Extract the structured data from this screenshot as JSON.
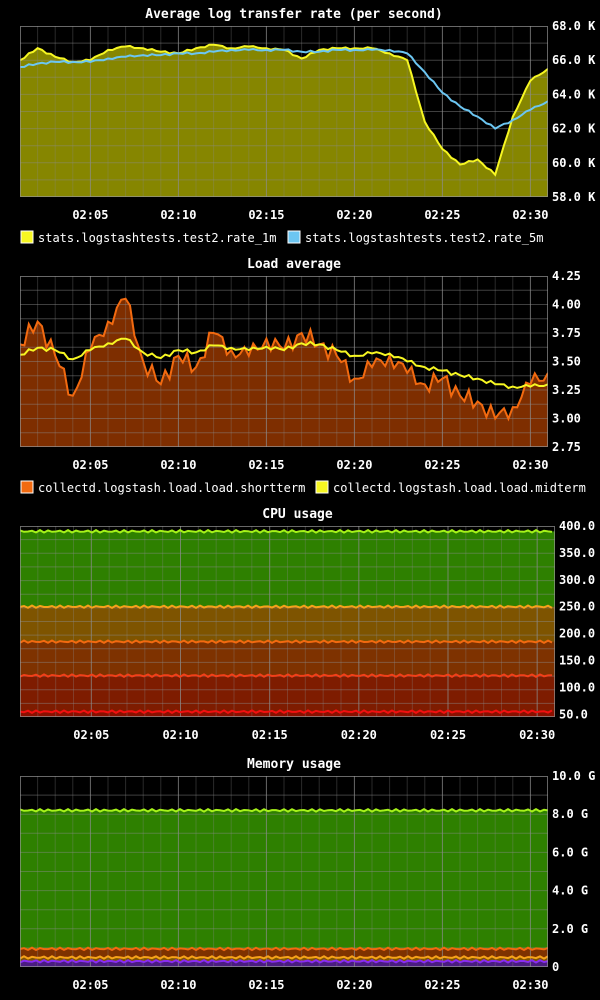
{
  "chart_data": [
    {
      "type": "area",
      "title": "Average log transfer rate (per second)",
      "x_ticks": [
        "02:05",
        "02:10",
        "02:15",
        "02:20",
        "02:25",
        "02:30"
      ],
      "x_range": [
        "02:01",
        "02:31"
      ],
      "ylim": [
        58000,
        68000
      ],
      "y_ticks": [
        58000,
        60000,
        62000,
        64000,
        66000,
        68000
      ],
      "y_tick_labels": [
        "58.0 K",
        "60.0 K",
        "62.0 K",
        "64.0 K",
        "66.0 K",
        "68.0 K"
      ],
      "grid": true,
      "legend_position": "bottom-left",
      "series": [
        {
          "name": "stats.logstashtests.test2.rate_1m",
          "color": "#f7f722",
          "fill": "#868600",
          "x": [
            "02:01",
            "02:02",
            "02:03",
            "02:04",
            "02:05",
            "02:06",
            "02:07",
            "02:08",
            "02:09",
            "02:10",
            "02:11",
            "02:12",
            "02:13",
            "02:14",
            "02:15",
            "02:16",
            "02:17",
            "02:18",
            "02:19",
            "02:20",
            "02:21",
            "02:22",
            "02:23",
            "02:24",
            "02:25",
            "02:26",
            "02:27",
            "02:28",
            "02:29",
            "02:30",
            "02:31"
          ],
          "values": [
            66000,
            66700,
            66200,
            65900,
            66000,
            66600,
            66800,
            66700,
            66500,
            66400,
            66700,
            66900,
            66700,
            66800,
            66700,
            66600,
            66100,
            66600,
            66700,
            66700,
            66700,
            66400,
            66000,
            62400,
            60800,
            59900,
            60200,
            59300,
            62700,
            64800,
            65500
          ]
        },
        {
          "name": "stats.logstashtests.test2.rate_5m",
          "color": "#6cc6f2",
          "x": [
            "02:01",
            "02:02",
            "02:03",
            "02:04",
            "02:05",
            "02:06",
            "02:07",
            "02:08",
            "02:09",
            "02:10",
            "02:11",
            "02:12",
            "02:13",
            "02:14",
            "02:15",
            "02:16",
            "02:17",
            "02:18",
            "02:19",
            "02:20",
            "02:21",
            "02:22",
            "02:23",
            "02:24",
            "02:25",
            "02:26",
            "02:27",
            "02:28",
            "02:29",
            "02:30",
            "02:31"
          ],
          "values": [
            65600,
            65800,
            65900,
            65900,
            65900,
            66100,
            66200,
            66300,
            66300,
            66400,
            66400,
            66500,
            66600,
            66600,
            66600,
            66600,
            66500,
            66500,
            66600,
            66600,
            66600,
            66600,
            66400,
            65300,
            64100,
            63300,
            62700,
            62000,
            62500,
            63100,
            63600
          ]
        }
      ]
    },
    {
      "type": "area",
      "title": "Load average",
      "x_ticks": [
        "02:05",
        "02:10",
        "02:15",
        "02:20",
        "02:25",
        "02:30"
      ],
      "x_range": [
        "02:01",
        "02:31"
      ],
      "ylim": [
        2.75,
        4.25
      ],
      "y_ticks": [
        2.75,
        3.0,
        3.25,
        3.5,
        3.75,
        4.0,
        4.25
      ],
      "y_tick_labels": [
        "2.75",
        "3.00",
        "3.25",
        "3.50",
        "3.75",
        "4.00",
        "4.25"
      ],
      "grid": true,
      "legend_position": "bottom-left",
      "series": [
        {
          "name": "collectd.logstash.load.load.shortterm",
          "color": "#f26a10",
          "fill": "#7e2e00",
          "x": [
            "02:01",
            "02:02",
            "02:03",
            "02:04",
            "02:05",
            "02:06",
            "02:07",
            "02:08",
            "02:09",
            "02:10",
            "02:11",
            "02:12",
            "02:13",
            "02:14",
            "02:15",
            "02:16",
            "02:17",
            "02:18",
            "02:19",
            "02:20",
            "02:21",
            "02:22",
            "02:23",
            "02:24",
            "02:25",
            "02:26",
            "02:27",
            "02:28",
            "02:29",
            "02:30",
            "02:31"
          ],
          "values": [
            3.65,
            3.85,
            3.55,
            3.2,
            3.6,
            3.85,
            4.05,
            3.5,
            3.3,
            3.55,
            3.45,
            3.75,
            3.6,
            3.55,
            3.7,
            3.6,
            3.75,
            3.65,
            3.55,
            3.35,
            3.45,
            3.55,
            3.4,
            3.3,
            3.35,
            3.2,
            3.15,
            3.0,
            3.1,
            3.3,
            3.4
          ]
        },
        {
          "name": "collectd.logstash.load.load.midterm",
          "color": "#f7f722",
          "x": [
            "02:01",
            "02:02",
            "02:03",
            "02:04",
            "02:05",
            "02:06",
            "02:07",
            "02:08",
            "02:09",
            "02:10",
            "02:11",
            "02:12",
            "02:13",
            "02:14",
            "02:15",
            "02:16",
            "02:17",
            "02:18",
            "02:19",
            "02:20",
            "02:21",
            "02:22",
            "02:23",
            "02:24",
            "02:25",
            "02:26",
            "02:27",
            "02:28",
            "02:29",
            "02:30",
            "02:31"
          ],
          "values": [
            3.56,
            3.62,
            3.6,
            3.52,
            3.6,
            3.66,
            3.7,
            3.58,
            3.53,
            3.6,
            3.58,
            3.64,
            3.62,
            3.6,
            3.63,
            3.6,
            3.66,
            3.65,
            3.6,
            3.55,
            3.57,
            3.57,
            3.5,
            3.45,
            3.42,
            3.38,
            3.35,
            3.3,
            3.28,
            3.28,
            3.3
          ]
        }
      ]
    },
    {
      "type": "area",
      "title": "CPU usage",
      "x_ticks": [
        "02:05",
        "02:10",
        "02:15",
        "02:20",
        "02:25",
        "02:30"
      ],
      "x_range": [
        "02:01",
        "02:31"
      ],
      "ylim": [
        45,
        400
      ],
      "y_ticks": [
        50,
        100,
        150,
        200,
        250,
        300,
        350,
        400
      ],
      "y_tick_labels": [
        "50.0",
        "100.0",
        "150.0",
        "200.0",
        "250.0",
        "300.0",
        "350.0",
        "400.0"
      ],
      "grid": true,
      "bands": [
        {
          "top": 390,
          "line": "#a6f21a",
          "fill": "#2e8000"
        },
        {
          "top": 250,
          "line": "#f7a21a",
          "fill": "#7e5400"
        },
        {
          "top": 185,
          "line": "#f26a10",
          "fill": "#7e3200"
        },
        {
          "top": 122,
          "line": "#f2401a",
          "fill": "#7e1c00"
        },
        {
          "top": 55,
          "line": "#f21010",
          "fill": "#8a1000"
        }
      ]
    },
    {
      "type": "area",
      "title": "Memory usage",
      "x_ticks": [
        "02:05",
        "02:10",
        "02:15",
        "02:20",
        "02:25",
        "02:30"
      ],
      "x_range": [
        "02:01",
        "02:31"
      ],
      "ylim": [
        0,
        10
      ],
      "y_ticks": [
        0,
        2,
        4,
        6,
        8,
        10
      ],
      "y_tick_labels": [
        "0",
        "2.0 G",
        "4.0 G",
        "6.0 G",
        "8.0 G",
        "10.0 G"
      ],
      "grid": true,
      "bands": [
        {
          "top": 8.2,
          "line": "#a6f21a",
          "fill": "#2e8000"
        },
        {
          "top": 0.95,
          "line": "#f26a10",
          "fill": "#7e3200"
        },
        {
          "top": 0.5,
          "line": "#f7a21a",
          "fill": "#7e5400"
        },
        {
          "top": 0.3,
          "line": "#8a2cf2",
          "fill": "#4a1c80"
        }
      ]
    }
  ]
}
